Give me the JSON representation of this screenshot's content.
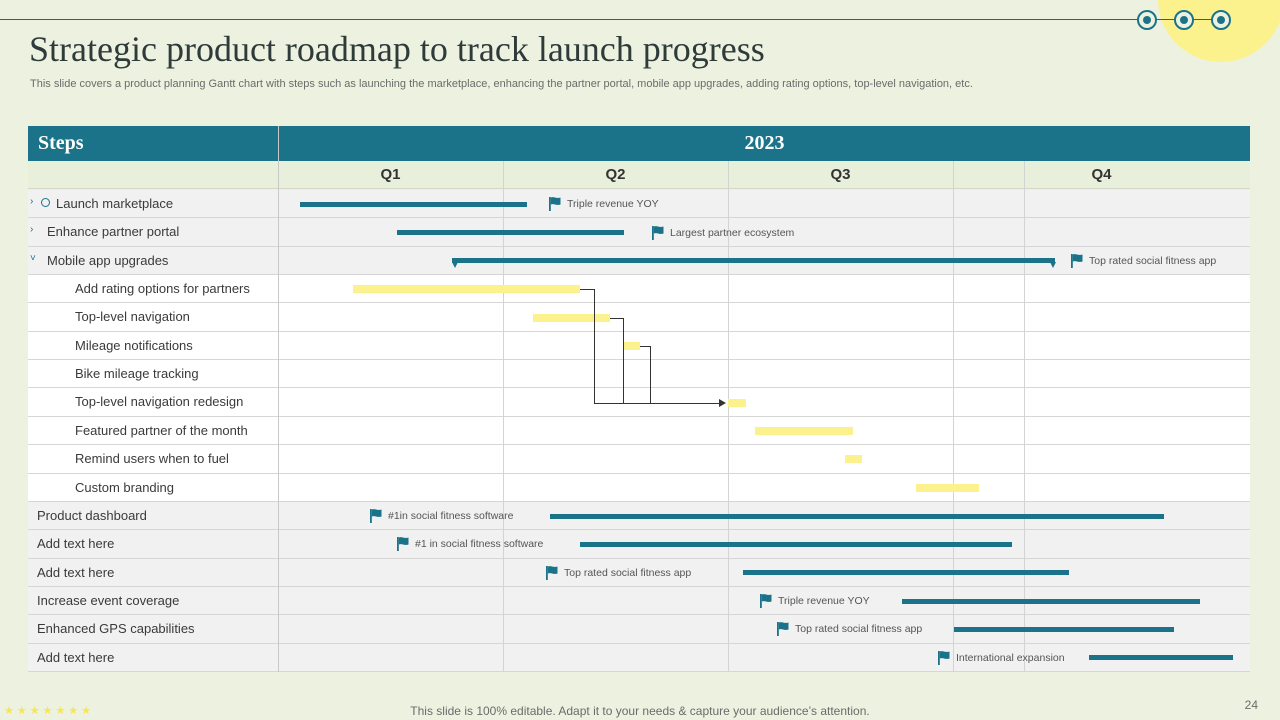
{
  "title": "Strategic product roadmap to track launch progress",
  "subtitle": "This slide covers a product planning Gantt chart with steps such as launching the marketplace, enhancing the partner portal, mobile app upgrades, adding rating options, top-level navigation, etc.",
  "header": {
    "steps": "Steps",
    "year": "2023"
  },
  "quarters": [
    "Q1",
    "Q2",
    "Q3",
    "Q4"
  ],
  "rows": [
    {
      "label": "Launch marketplace",
      "milestone": "Triple revenue YOY"
    },
    {
      "label": "Enhance partner portal",
      "milestone": "Largest partner ecosystem"
    },
    {
      "label": "Mobile app upgrades",
      "milestone": "Top rated social fitness app"
    },
    {
      "label": "Add rating options for partners"
    },
    {
      "label": "Top-level  navigation"
    },
    {
      "label": "Mileage notifications"
    },
    {
      "label": "Bike mileage  tracking"
    },
    {
      "label": "Top-level  navigation redesign"
    },
    {
      "label": "Featured partner of the month"
    },
    {
      "label": "Remind users when to fuel"
    },
    {
      "label": "Custom branding"
    },
    {
      "label": "Product dashboard",
      "milestone": "#1in social fitness software"
    },
    {
      "label": "Add text here",
      "milestone": "#1 in social fitness software"
    },
    {
      "label": "Add text here",
      "milestone": "Top rated social fitness app"
    },
    {
      "label": "Increase event coverage",
      "milestone": "Triple revenue YOY"
    },
    {
      "label": "Enhanced GPS capabilities",
      "milestone": "Top rated social fitness app"
    },
    {
      "label": "Add text here",
      "milestone": "International expansion"
    }
  ],
  "colors": {
    "accent": "#1a7389",
    "highlight": "#fbf28e",
    "background": "#ecf2df"
  },
  "icons": {
    "milestone": "flag-icon",
    "expand": "chevron-icon",
    "status": "clock-icon"
  },
  "footer": "This slide is 100% editable. Adapt it to your needs & capture your audience’s attention.",
  "page_number": "24"
}
